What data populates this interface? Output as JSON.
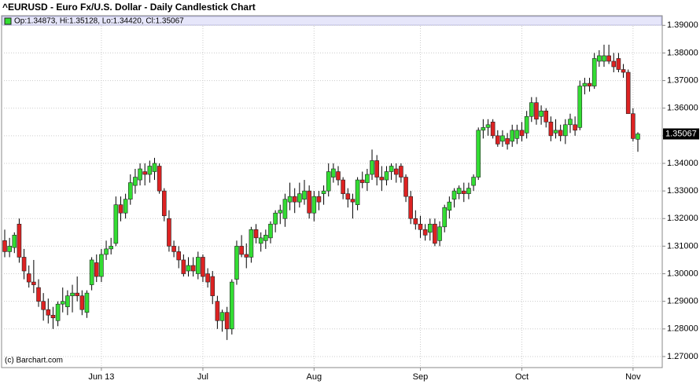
{
  "chart_data": {
    "type": "candlestick",
    "title": "^EURUSD - Euro Fx/U.S. Dollar - Daily Candlestick Chart",
    "legend_text": "Op:1.34873, Hi:1.35128, Lo:1.34420, Cl:1.35067",
    "source": "(c) Barchart.com",
    "up_color": "#33dd33",
    "down_color": "#dd2222",
    "grid": true,
    "ylim": [
      1.266,
      1.3935
    ],
    "yticks": [
      {
        "value": 1.27,
        "label": "1.27000"
      },
      {
        "value": 1.28,
        "label": "1.28000"
      },
      {
        "value": 1.29,
        "label": "1.29000"
      },
      {
        "value": 1.3,
        "label": "1.30000"
      },
      {
        "value": 1.31,
        "label": "1.31000"
      },
      {
        "value": 1.32,
        "label": "1.32000"
      },
      {
        "value": 1.33,
        "label": "1.33000"
      },
      {
        "value": 1.34,
        "label": "1.34000"
      },
      {
        "value": 1.35,
        "label": "1.35000"
      },
      {
        "value": 1.36,
        "label": "1.36000"
      },
      {
        "value": 1.37,
        "label": "1.37000"
      },
      {
        "value": 1.38,
        "label": "1.38000"
      },
      {
        "value": 1.39,
        "label": "1.39000"
      }
    ],
    "categories": [
      null,
      null,
      null,
      null,
      null,
      null,
      null,
      null,
      null,
      null,
      null,
      null,
      null,
      null,
      null,
      null,
      null,
      null,
      null,
      null,
      "Jun 13",
      null,
      null,
      null,
      null,
      null,
      null,
      null,
      null,
      null,
      null,
      null,
      null,
      null,
      null,
      null,
      null,
      null,
      null,
      null,
      null,
      "Jul",
      null,
      null,
      null,
      null,
      null,
      null,
      null,
      null,
      null,
      null,
      null,
      null,
      null,
      null,
      null,
      null,
      null,
      null,
      null,
      null,
      null,
      null,
      "Aug",
      null,
      null,
      null,
      null,
      null,
      null,
      null,
      null,
      null,
      null,
      null,
      null,
      null,
      null,
      null,
      null,
      null,
      null,
      null,
      null,
      null,
      "Sep",
      null,
      null,
      null,
      null,
      null,
      null,
      null,
      null,
      null,
      null,
      null,
      null,
      null,
      null,
      null,
      null,
      null,
      null,
      null,
      null,
      "Oct",
      null,
      null,
      null,
      null,
      null,
      null,
      null,
      null,
      null,
      null,
      null,
      null,
      null,
      null,
      null,
      null,
      null,
      null,
      null,
      null,
      null,
      null,
      "Nov",
      null
    ],
    "open": [
      1.312,
      1.308,
      1.3095,
      1.318,
      1.306,
      1.3,
      1.297,
      1.295,
      1.29,
      1.287,
      1.285,
      1.283,
      1.289,
      1.288,
      1.292,
      1.293,
      1.292,
      1.286,
      1.296,
      1.304,
      1.299,
      1.307,
      1.309,
      1.311,
      1.325,
      1.322,
      1.327,
      1.332,
      1.334,
      1.337,
      1.336,
      1.337,
      1.339,
      1.33,
      1.32,
      1.31,
      1.308,
      1.305,
      1.301,
      1.303,
      1.3,
      1.306,
      1.3,
      1.299,
      1.29,
      1.283,
      1.286,
      1.28,
      1.298,
      1.31,
      1.307,
      1.306,
      1.316,
      1.311,
      1.312,
      1.313,
      1.318,
      1.322,
      1.32,
      1.326,
      1.328,
      1.326,
      1.327,
      1.33,
      1.322,
      1.328,
      1.329,
      1.33,
      1.335,
      1.337,
      1.334,
      1.329,
      1.327,
      1.325,
      1.334,
      1.333,
      1.336,
      1.341,
      1.335,
      1.334,
      1.337,
      1.338,
      1.339,
      1.335,
      1.328,
      1.32,
      1.318,
      1.316,
      1.315,
      1.318,
      1.312,
      1.317,
      1.323,
      1.327,
      1.329,
      1.33,
      1.329,
      1.332,
      1.335,
      1.352,
      1.353,
      1.355,
      1.35,
      1.348,
      1.349,
      1.348,
      1.349,
      1.352,
      1.351,
      1.357,
      1.362,
      1.357,
      1.359,
      1.355,
      1.351,
      1.352,
      1.35,
      1.354,
      1.354,
      1.353,
      1.368,
      1.369,
      1.368,
      1.377,
      1.377,
      1.379,
      1.377,
      1.378,
      1.374,
      1.373,
      1.358,
      1.34873
    ],
    "high": [
      1.316,
      1.313,
      1.315,
      1.32,
      1.309,
      1.303,
      1.305,
      1.298,
      1.293,
      1.291,
      1.288,
      1.29,
      1.295,
      1.294,
      1.296,
      1.299,
      1.294,
      1.294,
      1.306,
      1.307,
      1.309,
      1.312,
      1.313,
      1.328,
      1.328,
      1.329,
      1.336,
      1.338,
      1.34,
      1.34,
      1.341,
      1.342,
      1.34,
      1.331,
      1.323,
      1.312,
      1.31,
      1.307,
      1.306,
      1.306,
      1.308,
      1.307,
      1.302,
      1.301,
      1.292,
      1.287,
      1.288,
      1.298,
      1.312,
      1.314,
      1.311,
      1.317,
      1.318,
      1.315,
      1.316,
      1.319,
      1.323,
      1.325,
      1.329,
      1.333,
      1.331,
      1.333,
      1.334,
      1.332,
      1.33,
      1.33,
      1.332,
      1.34,
      1.34,
      1.339,
      1.335,
      1.331,
      1.329,
      1.335,
      1.337,
      1.338,
      1.345,
      1.343,
      1.339,
      1.339,
      1.34,
      1.34,
      1.34,
      1.336,
      1.33,
      1.323,
      1.321,
      1.318,
      1.32,
      1.32,
      1.319,
      1.325,
      1.328,
      1.331,
      1.332,
      1.333,
      1.333,
      1.336,
      1.353,
      1.356,
      1.356,
      1.356,
      1.352,
      1.352,
      1.351,
      1.354,
      1.354,
      1.355,
      1.359,
      1.364,
      1.364,
      1.361,
      1.36,
      1.357,
      1.356,
      1.354,
      1.356,
      1.358,
      1.357,
      1.37,
      1.371,
      1.371,
      1.38,
      1.381,
      1.383,
      1.383,
      1.38,
      1.38,
      1.376,
      1.374,
      1.36,
      1.35128
    ],
    "low": [
      1.306,
      1.306,
      1.3075,
      1.304,
      1.298,
      1.295,
      1.293,
      1.288,
      1.283,
      1.282,
      1.28,
      1.281,
      1.286,
      1.285,
      1.286,
      1.29,
      1.285,
      1.284,
      1.294,
      1.297,
      1.297,
      1.305,
      1.307,
      1.31,
      1.319,
      1.32,
      1.325,
      1.329,
      1.332,
      1.332,
      1.333,
      1.334,
      1.329,
      1.319,
      1.308,
      1.306,
      1.302,
      1.299,
      1.299,
      1.299,
      1.298,
      1.297,
      1.295,
      1.289,
      1.28,
      1.279,
      1.276,
      1.278,
      1.296,
      1.306,
      1.302,
      1.304,
      1.311,
      1.308,
      1.309,
      1.311,
      1.315,
      1.318,
      1.317,
      1.323,
      1.322,
      1.324,
      1.325,
      1.32,
      1.319,
      1.323,
      1.325,
      1.328,
      1.333,
      1.332,
      1.327,
      1.324,
      1.32,
      1.323,
      1.331,
      1.33,
      1.334,
      1.332,
      1.33,
      1.332,
      1.334,
      1.333,
      1.333,
      1.326,
      1.318,
      1.316,
      1.313,
      1.312,
      1.312,
      1.31,
      1.31,
      1.315,
      1.32,
      1.324,
      1.327,
      1.326,
      1.327,
      1.33,
      1.334,
      1.349,
      1.35,
      1.349,
      1.346,
      1.346,
      1.345,
      1.346,
      1.347,
      1.348,
      1.349,
      1.355,
      1.354,
      1.354,
      1.353,
      1.348,
      1.349,
      1.348,
      1.347,
      1.351,
      1.35,
      1.352,
      1.365,
      1.366,
      1.367,
      1.375,
      1.375,
      1.376,
      1.373,
      1.373,
      1.371,
      1.358,
      1.348,
      1.3442
    ],
    "close": [
      1.308,
      1.31,
      1.314,
      1.306,
      1.301,
      1.297,
      1.296,
      1.29,
      1.287,
      1.285,
      1.284,
      1.289,
      1.29,
      1.292,
      1.293,
      1.292,
      1.287,
      1.293,
      1.305,
      1.299,
      1.307,
      1.309,
      1.31,
      1.325,
      1.322,
      1.327,
      1.333,
      1.335,
      1.338,
      1.336,
      1.339,
      1.34,
      1.33,
      1.321,
      1.31,
      1.308,
      1.305,
      1.3,
      1.303,
      1.301,
      1.306,
      1.299,
      1.297,
      1.292,
      1.283,
      1.286,
      1.28,
      1.297,
      1.31,
      1.307,
      1.306,
      1.316,
      1.313,
      1.313,
      1.314,
      1.318,
      1.322,
      1.323,
      1.327,
      1.328,
      1.326,
      1.329,
      1.33,
      1.322,
      1.328,
      1.326,
      1.33,
      1.337,
      1.338,
      1.334,
      1.329,
      1.327,
      1.326,
      1.334,
      1.333,
      1.336,
      1.341,
      1.335,
      1.334,
      1.337,
      1.339,
      1.336,
      1.335,
      1.328,
      1.32,
      1.318,
      1.316,
      1.314,
      1.318,
      1.311,
      1.317,
      1.324,
      1.326,
      1.33,
      1.331,
      1.329,
      1.331,
      1.335,
      1.352,
      1.353,
      1.354,
      1.35,
      1.347,
      1.35,
      1.347,
      1.352,
      1.352,
      1.35,
      1.357,
      1.362,
      1.356,
      1.359,
      1.355,
      1.35,
      1.352,
      1.35,
      1.354,
      1.356,
      1.352,
      1.368,
      1.369,
      1.368,
      1.378,
      1.379,
      1.379,
      1.377,
      1.375,
      1.374,
      1.373,
      1.358,
      1.349,
      1.35067
    ]
  }
}
